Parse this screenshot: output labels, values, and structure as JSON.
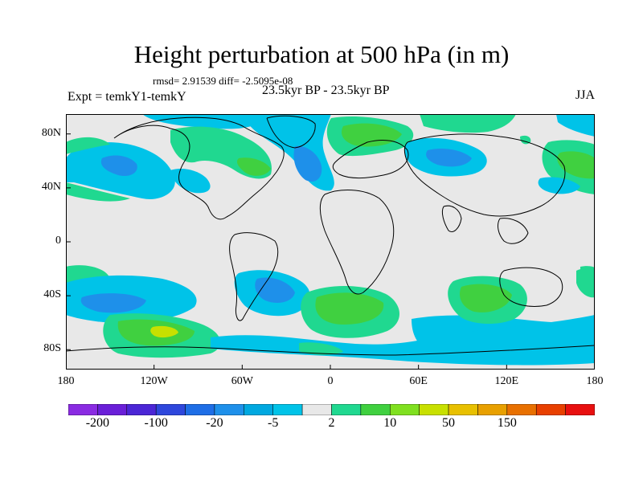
{
  "title": "Height perturbation at 500 hPa (in m)",
  "stats": "rmsd= 2.91539 diff= -2.5095e-08",
  "left_label": "Expt = temkY1-temkY",
  "center_label": "23.5kyr BP - 23.5kyr BP",
  "right_label": "JJA",
  "lat_ticks": [
    {
      "label": "80N",
      "lat": 80
    },
    {
      "label": "40N",
      "lat": 40
    },
    {
      "label": "0",
      "lat": 0
    },
    {
      "label": "40S",
      "lat": -40
    },
    {
      "label": "80S",
      "lat": -80
    }
  ],
  "lon_ticks": [
    {
      "label": "180",
      "lon": -180
    },
    {
      "label": "120W",
      "lon": -120
    },
    {
      "label": "60W",
      "lon": -60
    },
    {
      "label": "0",
      "lon": 0
    },
    {
      "label": "60E",
      "lon": 60
    },
    {
      "label": "120E",
      "lon": 120
    },
    {
      "label": "180",
      "lon": 180
    }
  ],
  "colorbar": {
    "colors": [
      "#8a2be2",
      "#6a1fd8",
      "#4b26d6",
      "#2e47dc",
      "#1e6ee6",
      "#1e90ea",
      "#00a8e0",
      "#00c3e8",
      "#e8e8e8",
      "#20d890",
      "#40d040",
      "#80e020",
      "#c8e000",
      "#e8c000",
      "#e8a000",
      "#e87000",
      "#e84000",
      "#e81010"
    ],
    "labels": [
      {
        "text": "-200",
        "index": 1
      },
      {
        "text": "-100",
        "index": 3
      },
      {
        "text": "-20",
        "index": 5
      },
      {
        "text": "-5",
        "index": 7
      },
      {
        "text": "2",
        "index": 9
      },
      {
        "text": "10",
        "index": 11
      },
      {
        "text": "50",
        "index": 13
      },
      {
        "text": "150",
        "index": 15
      }
    ]
  },
  "colors": {
    "background": "#e8e8e8",
    "cyan": "#00c3e8",
    "blue": "#1e90ea",
    "teal": "#20d890",
    "green": "#40d040",
    "yellowgreen": "#c8e000"
  }
}
